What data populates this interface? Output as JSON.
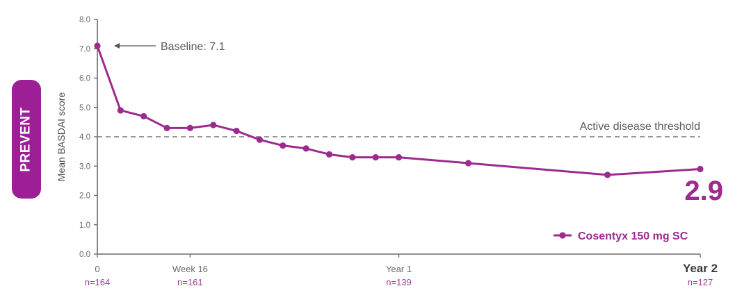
{
  "badge": {
    "label": "PREVENT",
    "color": "#9c1f96"
  },
  "chart_data": {
    "type": "line",
    "title": "",
    "xlabel": "",
    "ylabel": "Mean BASDAI score",
    "ylim": [
      0,
      8
    ],
    "yticks": [
      "0.0",
      "1.0",
      "2.0",
      "3.0",
      "4.0",
      "5.0",
      "6.0",
      "7.0",
      "8.0"
    ],
    "x_unit": "weeks",
    "xlim": [
      0,
      104
    ],
    "xticks": [
      {
        "week": 0,
        "label": "0",
        "n": "n=164",
        "bold": false
      },
      {
        "week": 16,
        "label": "Week 16",
        "n": "n=161",
        "bold": false
      },
      {
        "week": 52,
        "label": "Year 1",
        "n": "n=139",
        "bold": false
      },
      {
        "week": 104,
        "label": "Year 2",
        "n": "n=127",
        "bold": true
      }
    ],
    "series": [
      {
        "name": "Cosentyx 150 mg SC",
        "color": "#9c2a8f",
        "x": [
          0,
          4,
          8,
          12,
          16,
          20,
          24,
          28,
          32,
          36,
          40,
          44,
          48,
          52,
          64,
          88,
          104
        ],
        "values": [
          7.1,
          4.9,
          4.7,
          4.3,
          4.3,
          4.4,
          4.2,
          3.9,
          3.7,
          3.6,
          3.4,
          3.3,
          3.3,
          3.3,
          3.1,
          2.7,
          2.9
        ]
      }
    ],
    "reference_lines": [
      {
        "y": 4.0,
        "label": "Active disease threshold",
        "style": "dashed"
      }
    ],
    "annotations": [
      {
        "text": "Baseline: 7.1",
        "x": 0,
        "y": 7.1,
        "arrow": true
      },
      {
        "text": "2.9",
        "x": 104,
        "y": 2.9,
        "emphasis": true
      }
    ],
    "legend": {
      "position": "bottom-right",
      "entries": [
        "Cosentyx 150 mg SC"
      ]
    },
    "grid": false
  }
}
